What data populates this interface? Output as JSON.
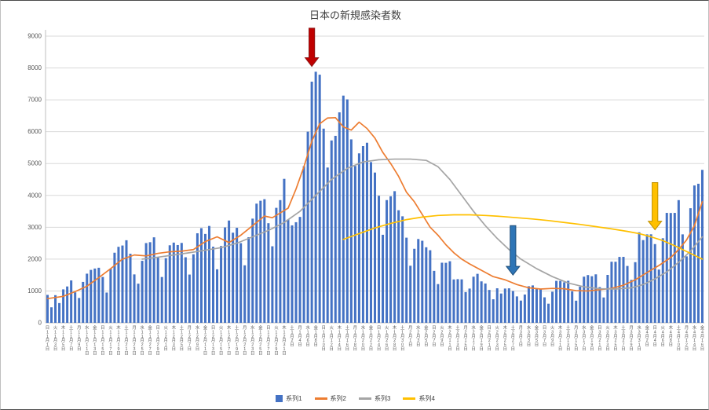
{
  "chart_data": {
    "type": "bar",
    "title": "日本の新規感染者数",
    "y_axis": {
      "min": 0,
      "max": 9000,
      "step": 1000
    },
    "grid": true,
    "legend_position": "bottom",
    "x_axis": {
      "weekdays": [
        "日",
        "月",
        "火",
        "水",
        "木",
        "金",
        "土"
      ],
      "start_weekday_index": 0,
      "month_suffix": "月",
      "day_suffix": "日",
      "label_every": 2,
      "months": [
        {
          "m": 11,
          "d": 30
        },
        {
          "m": 12,
          "d": 31
        },
        {
          "m": 1,
          "d": 31
        },
        {
          "m": 2,
          "d": 28
        },
        {
          "m": 3,
          "d": 31
        },
        {
          "m": 4,
          "d": 16
        }
      ]
    },
    "series": [
      {
        "name": "系列1",
        "type": "bar",
        "color": "#4472C4",
        "values": [
          877,
          487,
          868,
          620,
          1050,
          1141,
          1331,
          957,
          780,
          1284,
          1543,
          1661,
          1704,
          1729,
          1440,
          950,
          1699,
          2201,
          2386,
          2427,
          2592,
          2168,
          1520,
          1229,
          1946,
          2504,
          2531,
          2684,
          2066,
          1438,
          2030,
          2434,
          2518,
          2442,
          2508,
          2058,
          1515,
          2152,
          2811,
          2972,
          2790,
          3041,
          2388,
          1680,
          2410,
          2994,
          3211,
          2829,
          2982,
          2501,
          1805,
          2688,
          3271,
          3742,
          3832,
          3881,
          3127,
          2403,
          3610,
          3852,
          4520,
          3246,
          3059,
          3158,
          3325,
          4915,
          6001,
          7571,
          7882,
          7790,
          6096,
          4875,
          5725,
          5870,
          6607,
          7133,
          7014,
          5759,
          4925,
          5320,
          5548,
          5653,
          5045,
          4717,
          3988,
          2764,
          3853,
          3971,
          4133,
          3534,
          3344,
          2673,
          1792,
          2324,
          2631,
          2576,
          2372,
          2279,
          1631,
          1216,
          1887,
          1884,
          1933,
          1362,
          1371,
          1364,
          965,
          1075,
          1448,
          1538,
          1301,
          1234,
          1032,
          739,
          1084,
          920,
          1076,
          1083,
          999,
          829,
          698,
          888,
          1148,
          1174,
          1066,
          1053,
          800,
          600,
          976,
          1317,
          1316,
          1271,
          1320,
          989,
          695,
          1133,
          1449,
          1499,
          1463,
          1522,
          1121,
          796,
          1504,
          1918,
          1917,
          2069,
          2071,
          1785,
          1348,
          1904,
          2843,
          2597,
          2777,
          2779,
          2472,
          1671,
          2655,
          3451,
          3448,
          3451,
          3852,
          2777,
          2087,
          3597,
          4312,
          4366,
          4802
        ]
      },
      {
        "name": "系列2",
        "type": "line",
        "color": "#ED7D31",
        "points": [
          [
            0,
            760
          ],
          [
            4,
            830
          ],
          [
            7,
            980
          ],
          [
            10,
            1150
          ],
          [
            13,
            1420
          ],
          [
            16,
            1700
          ],
          [
            19,
            2000
          ],
          [
            22,
            2130
          ],
          [
            25,
            2100
          ],
          [
            28,
            2180
          ],
          [
            31,
            2230
          ],
          [
            34,
            2250
          ],
          [
            37,
            2300
          ],
          [
            40,
            2550
          ],
          [
            43,
            2700
          ],
          [
            46,
            2520
          ],
          [
            49,
            2750
          ],
          [
            52,
            3050
          ],
          [
            55,
            3350
          ],
          [
            57,
            3300
          ],
          [
            59,
            3450
          ],
          [
            61,
            3600
          ],
          [
            63,
            4200
          ],
          [
            65,
            4900
          ],
          [
            67,
            5700
          ],
          [
            69,
            6250
          ],
          [
            71,
            6430
          ],
          [
            73,
            6440
          ],
          [
            75,
            6150
          ],
          [
            77,
            6050
          ],
          [
            79,
            6300
          ],
          [
            81,
            6100
          ],
          [
            83,
            5800
          ],
          [
            85,
            5350
          ],
          [
            87,
            5000
          ],
          [
            89,
            4600
          ],
          [
            91,
            4100
          ],
          [
            93,
            3800
          ],
          [
            95,
            3400
          ],
          [
            97,
            3000
          ],
          [
            99,
            2750
          ],
          [
            101,
            2450
          ],
          [
            103,
            2200
          ],
          [
            105,
            2000
          ],
          [
            107,
            1850
          ],
          [
            110,
            1650
          ],
          [
            113,
            1450
          ],
          [
            116,
            1350
          ],
          [
            119,
            1200
          ],
          [
            122,
            1100
          ],
          [
            125,
            1060
          ],
          [
            128,
            1080
          ],
          [
            131,
            1070
          ],
          [
            134,
            1010
          ],
          [
            137,
            1000
          ],
          [
            140,
            1040
          ],
          [
            143,
            1080
          ],
          [
            146,
            1180
          ],
          [
            149,
            1350
          ],
          [
            152,
            1580
          ],
          [
            155,
            1800
          ],
          [
            158,
            2050
          ],
          [
            160,
            2300
          ],
          [
            162,
            2600
          ],
          [
            164,
            3050
          ],
          [
            166,
            3800
          ]
        ]
      },
      {
        "name": "系列3",
        "type": "line",
        "color": "#A5A5A5",
        "points": [
          [
            24,
            2000
          ],
          [
            28,
            2060
          ],
          [
            32,
            2130
          ],
          [
            36,
            2200
          ],
          [
            40,
            2280
          ],
          [
            44,
            2360
          ],
          [
            48,
            2500
          ],
          [
            52,
            2700
          ],
          [
            56,
            2900
          ],
          [
            60,
            3150
          ],
          [
            64,
            3500
          ],
          [
            68,
            4000
          ],
          [
            72,
            4500
          ],
          [
            76,
            4850
          ],
          [
            80,
            5050
          ],
          [
            84,
            5120
          ],
          [
            88,
            5140
          ],
          [
            92,
            5140
          ],
          [
            96,
            5100
          ],
          [
            99,
            4900
          ],
          [
            102,
            4500
          ],
          [
            105,
            4000
          ],
          [
            108,
            3500
          ],
          [
            111,
            3050
          ],
          [
            114,
            2650
          ],
          [
            117,
            2300
          ],
          [
            120,
            2000
          ],
          [
            124,
            1700
          ],
          [
            128,
            1450
          ],
          [
            132,
            1250
          ],
          [
            136,
            1130
          ],
          [
            140,
            1070
          ],
          [
            144,
            1060
          ],
          [
            148,
            1100
          ],
          [
            151,
            1200
          ],
          [
            154,
            1380
          ],
          [
            157,
            1600
          ],
          [
            160,
            1900
          ],
          [
            163,
            2250
          ],
          [
            166,
            2700
          ]
        ]
      },
      {
        "name": "系列4",
        "type": "line",
        "color": "#FFC000",
        "points": [
          [
            75,
            2620
          ],
          [
            79,
            2800
          ],
          [
            83,
            2980
          ],
          [
            87,
            3120
          ],
          [
            91,
            3240
          ],
          [
            95,
            3320
          ],
          [
            99,
            3370
          ],
          [
            103,
            3390
          ],
          [
            107,
            3390
          ],
          [
            111,
            3370
          ],
          [
            115,
            3340
          ],
          [
            119,
            3300
          ],
          [
            123,
            3260
          ],
          [
            127,
            3210
          ],
          [
            131,
            3150
          ],
          [
            135,
            3090
          ],
          [
            139,
            3020
          ],
          [
            143,
            2950
          ],
          [
            147,
            2870
          ],
          [
            150,
            2800
          ],
          [
            153,
            2700
          ],
          [
            156,
            2580
          ],
          [
            159,
            2420
          ],
          [
            161,
            2300
          ],
          [
            163,
            2180
          ],
          [
            165,
            2060
          ],
          [
            166,
            2000
          ]
        ]
      }
    ],
    "annotations": [
      {
        "name": "red-arrow",
        "color": "#C00000",
        "border": "#8C1515",
        "index": 67,
        "value_top": 9250,
        "value_tip": 8050
      },
      {
        "name": "blue-arrow",
        "color": "#2E75B6",
        "border": "#1F4E79",
        "index": 118,
        "value_top": 3050,
        "value_tip": 1500
      },
      {
        "name": "yellow-arrow",
        "color": "#FFC000",
        "border": "#BF9000",
        "index": 154,
        "value_top": 4400,
        "value_tip": 2920
      }
    ]
  }
}
